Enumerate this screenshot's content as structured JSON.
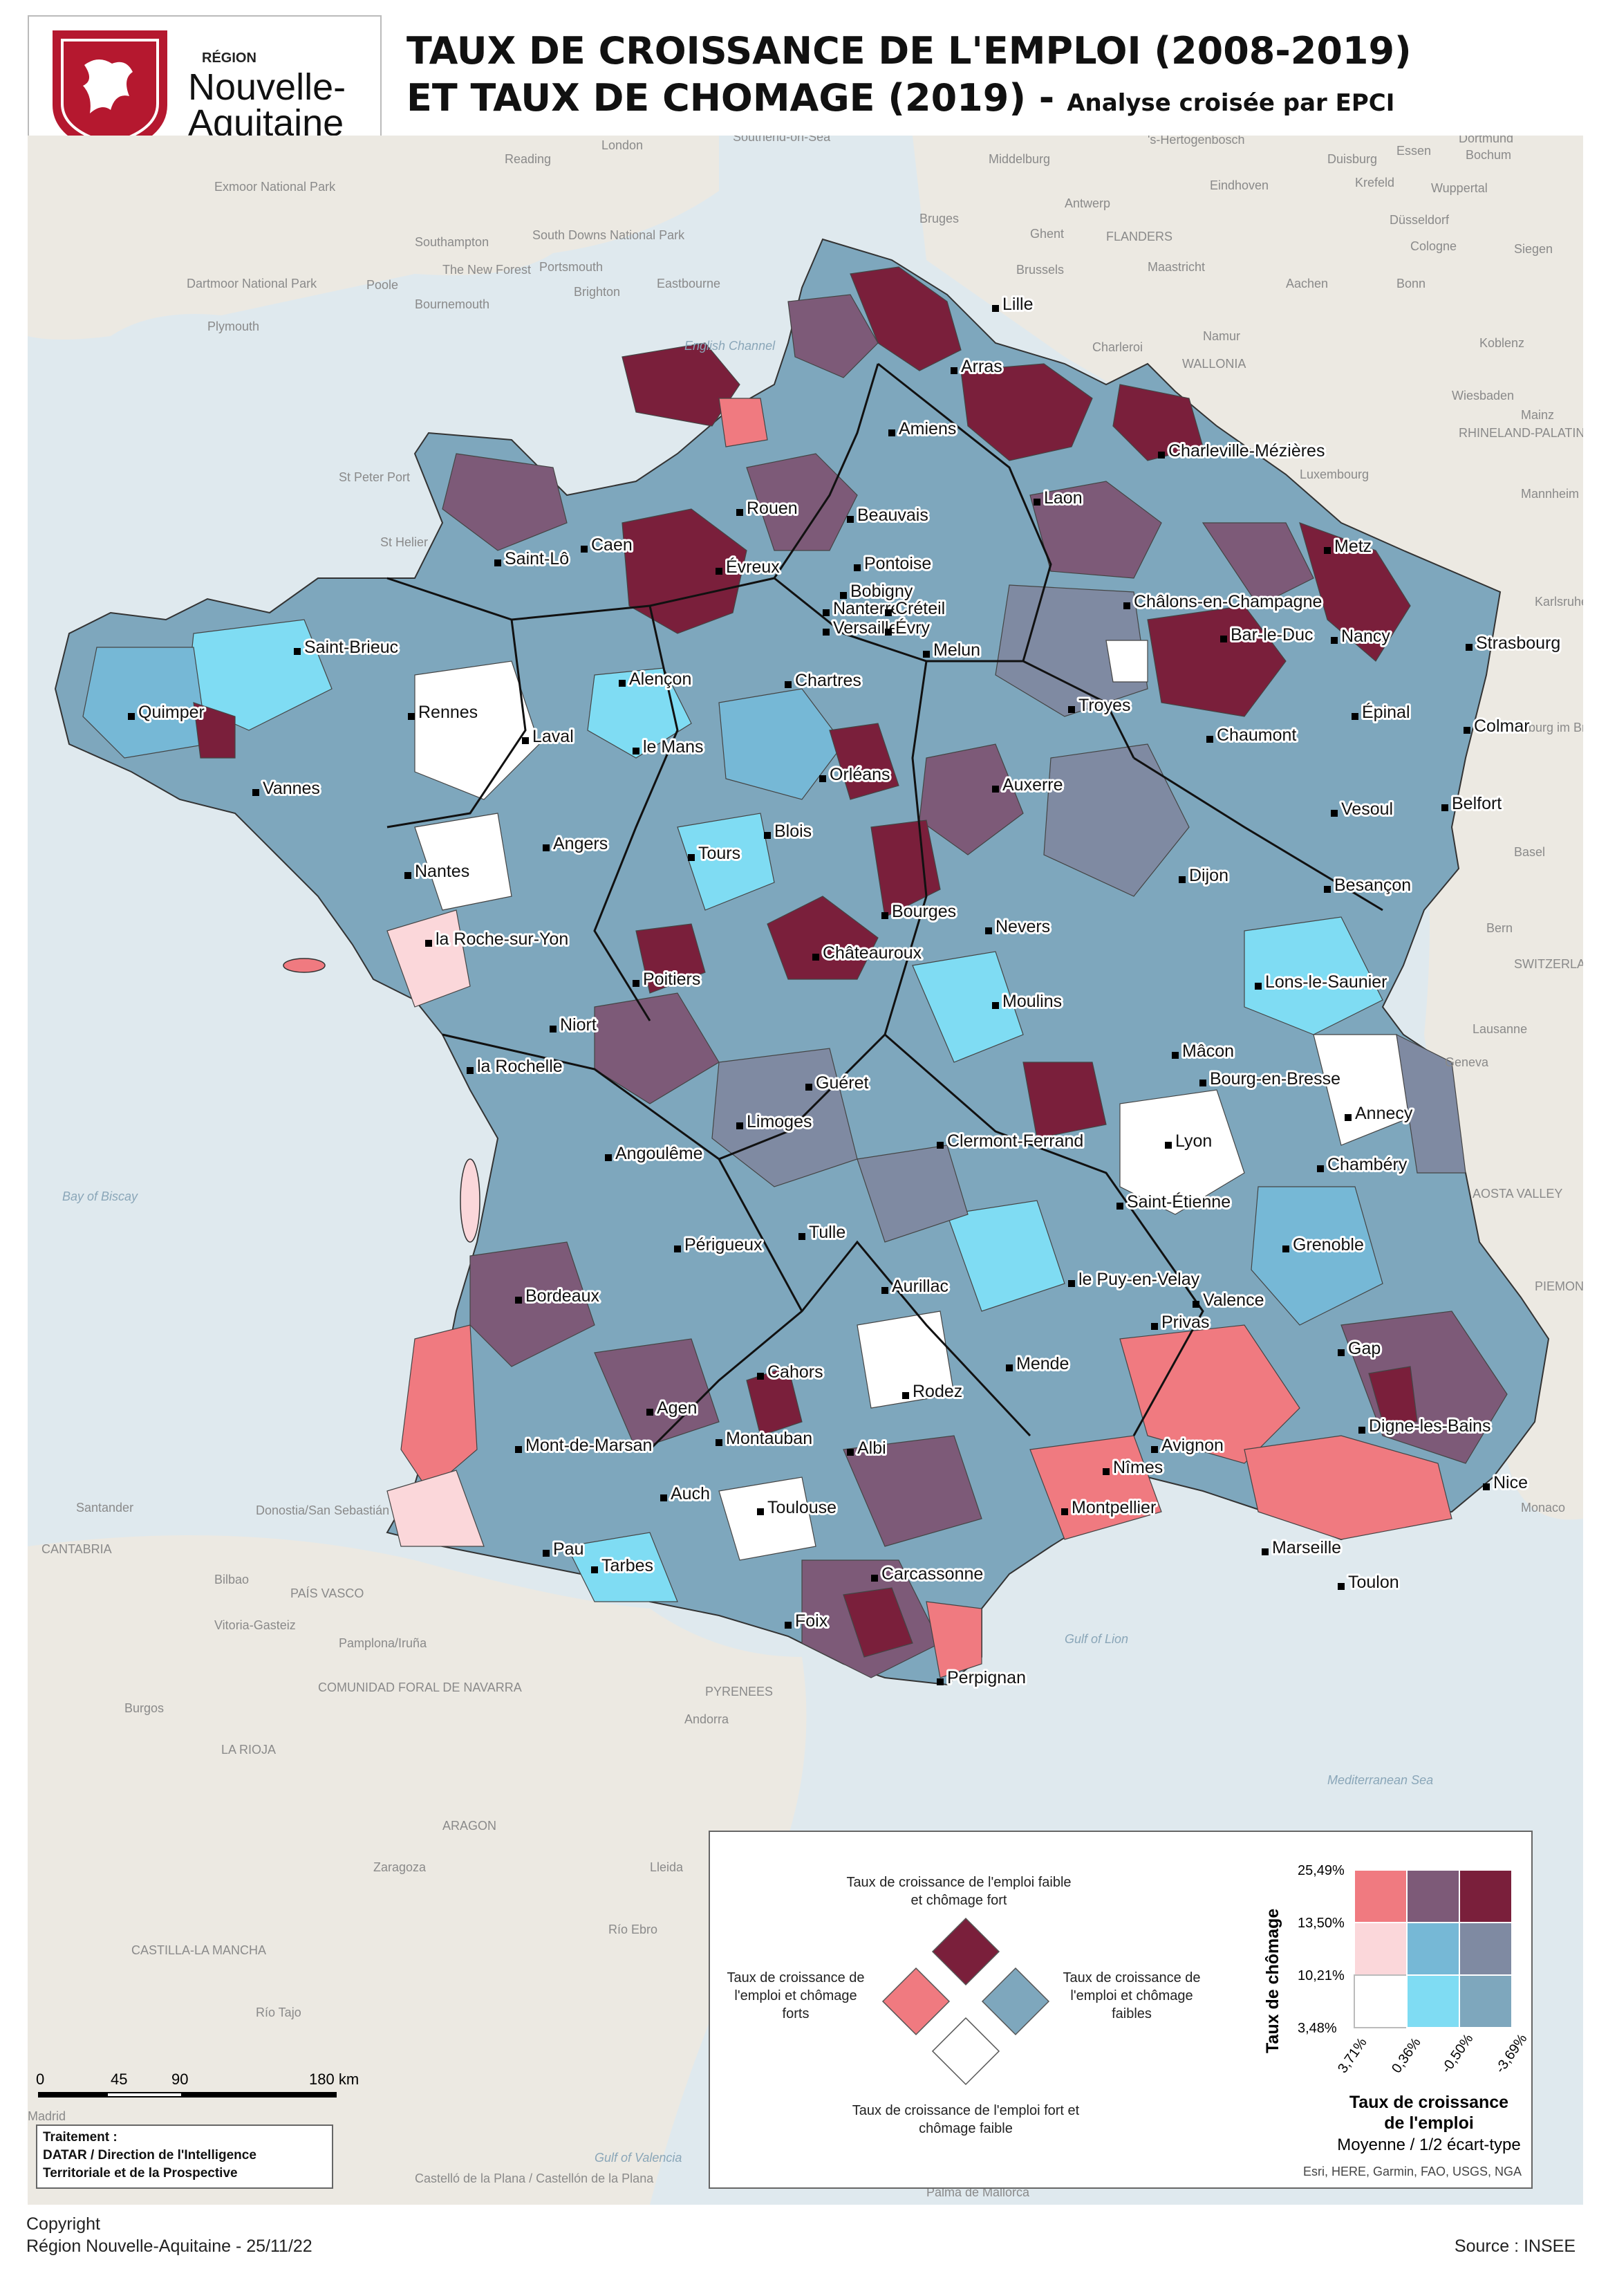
{
  "logo": {
    "small": "RÉGION",
    "line1": "Nouvelle-",
    "line2": "Aquitaine",
    "icon": "lion-rampant-icon",
    "color": "#b5182f"
  },
  "title": {
    "line1": "TAUX DE CROISSANCE DE L'EMPLOI (2008-2019)",
    "line2": "ET TAUX DE CHOMAGE (2019) -",
    "subtitle": "Analyse croisée par EPCI"
  },
  "palette": {
    "low_growth_high_unemp": "#7a1f3b",
    "mid_growth_high_unemp": "#7d5a78",
    "high_growth_high_unemp": "#f07a80",
    "high_growth_mid_unemp": "#fbd7da",
    "mid_growth_mid_unemp": "#76b8d6",
    "low_growth_mid_unemp": "#7f8aa2",
    "high_growth_low_unemp": "#ffffff",
    "mid_growth_low_unemp": "#7fdcf3",
    "low_growth_low_unemp": "#7ea7bd",
    "sea": "#dfe9ee",
    "land_bg": "#ece9e2"
  },
  "cities": [
    {
      "name": "Lille"
    },
    {
      "name": "Arras"
    },
    {
      "name": "Amiens"
    },
    {
      "name": "Charleville-Mézières"
    },
    {
      "name": "Rouen"
    },
    {
      "name": "Laon"
    },
    {
      "name": "Beauvais"
    },
    {
      "name": "Caen"
    },
    {
      "name": "Saint-Lô"
    },
    {
      "name": "Évreux"
    },
    {
      "name": "Pontoise"
    },
    {
      "name": "Metz"
    },
    {
      "name": "Bobigny"
    },
    {
      "name": "Nanterre"
    },
    {
      "name": "Créteil"
    },
    {
      "name": "Versailles"
    },
    {
      "name": "Évry"
    },
    {
      "name": "Melun"
    },
    {
      "name": "Châlons-en-Champagne"
    },
    {
      "name": "Bar-le-Duc"
    },
    {
      "name": "Nancy"
    },
    {
      "name": "Strasbourg"
    },
    {
      "name": "Saint-Brieuc"
    },
    {
      "name": "Alençon"
    },
    {
      "name": "Chartres"
    },
    {
      "name": "Quimper"
    },
    {
      "name": "Rennes"
    },
    {
      "name": "Troyes"
    },
    {
      "name": "Épinal"
    },
    {
      "name": "Colmar"
    },
    {
      "name": "Laval"
    },
    {
      "name": "le Mans"
    },
    {
      "name": "Chaumont"
    },
    {
      "name": "Orléans"
    },
    {
      "name": "Vannes"
    },
    {
      "name": "Auxerre"
    },
    {
      "name": "Belfort"
    },
    {
      "name": "Vesoul"
    },
    {
      "name": "Angers"
    },
    {
      "name": "Blois"
    },
    {
      "name": "Tours"
    },
    {
      "name": "Nantes"
    },
    {
      "name": "Dijon"
    },
    {
      "name": "Besançon"
    },
    {
      "name": "Bourges"
    },
    {
      "name": "Nevers"
    },
    {
      "name": "la Roche-sur-Yon"
    },
    {
      "name": "Châteauroux"
    },
    {
      "name": "Poitiers"
    },
    {
      "name": "Lons-le-Saunier"
    },
    {
      "name": "Moulins"
    },
    {
      "name": "Niort"
    },
    {
      "name": "la Rochelle"
    },
    {
      "name": "Mâcon"
    },
    {
      "name": "Bourg-en-Bresse"
    },
    {
      "name": "Guéret"
    },
    {
      "name": "Annecy"
    },
    {
      "name": "Limoges"
    },
    {
      "name": "Clermont-Ferrand"
    },
    {
      "name": "Lyon"
    },
    {
      "name": "Angoulême"
    },
    {
      "name": "Chambéry"
    },
    {
      "name": "Saint-Étienne"
    },
    {
      "name": "Tulle"
    },
    {
      "name": "Grenoble"
    },
    {
      "name": "Périgueux"
    },
    {
      "name": "le Puy-en-Velay"
    },
    {
      "name": "Aurillac"
    },
    {
      "name": "Valence"
    },
    {
      "name": "Bordeaux"
    },
    {
      "name": "Privas"
    },
    {
      "name": "Gap"
    },
    {
      "name": "Cahors"
    },
    {
      "name": "Mende"
    },
    {
      "name": "Rodez"
    },
    {
      "name": "Agen"
    },
    {
      "name": "Digne-les-Bains"
    },
    {
      "name": "Montauban"
    },
    {
      "name": "Albi"
    },
    {
      "name": "Mont-de-Marsan"
    },
    {
      "name": "Avignon"
    },
    {
      "name": "Nîmes"
    },
    {
      "name": "Nice"
    },
    {
      "name": "Auch"
    },
    {
      "name": "Toulouse"
    },
    {
      "name": "Montpellier"
    },
    {
      "name": "Pau"
    },
    {
      "name": "Marseille"
    },
    {
      "name": "Tarbes"
    },
    {
      "name": "Carcassonne"
    },
    {
      "name": "Toulon"
    },
    {
      "name": "Foix"
    },
    {
      "name": "Perpignan"
    }
  ],
  "background_labels": [
    "London",
    "Reading",
    "Southend-on-Sea",
    "Middelburg",
    "'s-Hertogenbosch",
    "Dortmund",
    "Duisburg",
    "Essen",
    "Bochum",
    "Krefeld",
    "Wuppertal",
    "Eindhoven",
    "Antwerp",
    "Düsseldorf",
    "Southampton",
    "South Downs National Park",
    "Portsmouth",
    "The New Forest",
    "Brighton",
    "Bruges",
    "Ghent",
    "FLANDERS",
    "Cologne",
    "Siegen",
    "Exmoor National Park",
    "Poole",
    "Bournemouth",
    "Eastbourne",
    "Brussels",
    "Maastricht",
    "Aachen",
    "Bonn",
    "Dartmoor National Park",
    "Plymouth",
    "English Channel",
    "Charleroi",
    "Namur",
    "Koblenz",
    "Wiesbaden",
    "Mainz",
    "St Peter Port",
    "St Helier",
    "WALLONIA",
    "Luxembourg",
    "RHINELAND-PALATINATE",
    "Mannheim",
    "Karlsruhe",
    "Freiburg im Breisgau",
    "Basel",
    "Bern",
    "SWITZERLAND",
    "Lausanne",
    "Geneva",
    "AOSTA VALLEY",
    "PIEMONTE",
    "Bay of Biscay",
    "Santander",
    "Donostia/San Sebastián",
    "CANTABRIA",
    "Bilbao",
    "PAÍS VASCO",
    "Vitoria-Gasteiz",
    "Pamplona/Iruña",
    "Burgos",
    "COMUNIDAD FORAL DE NAVARRA",
    "LA RIOJA",
    "Andorra",
    "PYRENEES",
    "Gulf of Lion",
    "Mediterranean Sea",
    "Monaco",
    "ARAGON",
    "Zaragoza",
    "Lleida",
    "Madrid",
    "CASTILLA-LA MANCHA",
    "Río Tajo",
    "Río Ebro",
    "Castelló de la Plana / Castellón de la Plana",
    "Gulf of Valencia",
    "Palma de Mallorca"
  ],
  "scale_bar": {
    "ticks": [
      "0",
      "45",
      "90",
      "180 km"
    ]
  },
  "legend": {
    "diamond_top": "Taux de croissance de l'emploi faible et chômage fort",
    "diamond_left": "Taux de croissance de l'emploi et chômage forts",
    "diamond_right": "Taux de croissance de l'emploi et chômage faibles",
    "diamond_bottom": "Taux de croissance de l'emploi fort et chômage faible",
    "y_axis_title": "Taux de chômage",
    "y_ticks": [
      "25,49%",
      "13,50%",
      "10,21%",
      "3,48%"
    ],
    "x_ticks": [
      "3,71%",
      "0,36%",
      "-0,50%",
      "-3,69%"
    ],
    "x_axis_title_1": "Taux de croissance",
    "x_axis_title_2": "de l'emploi",
    "method": "Moyenne / 1/2 écart-type"
  },
  "attribution": "Esri, HERE, Garmin, FAO, USGS, NGA",
  "treatment": {
    "label": "Traitement :",
    "line1": "DATAR / Direction de l'Intelligence",
    "line2": "Territoriale et de la Prospective"
  },
  "copyright": {
    "line1": "Copyright",
    "line2": "Région Nouvelle-Aquitaine - 25/11/22"
  },
  "source": "Source : INSEE"
}
